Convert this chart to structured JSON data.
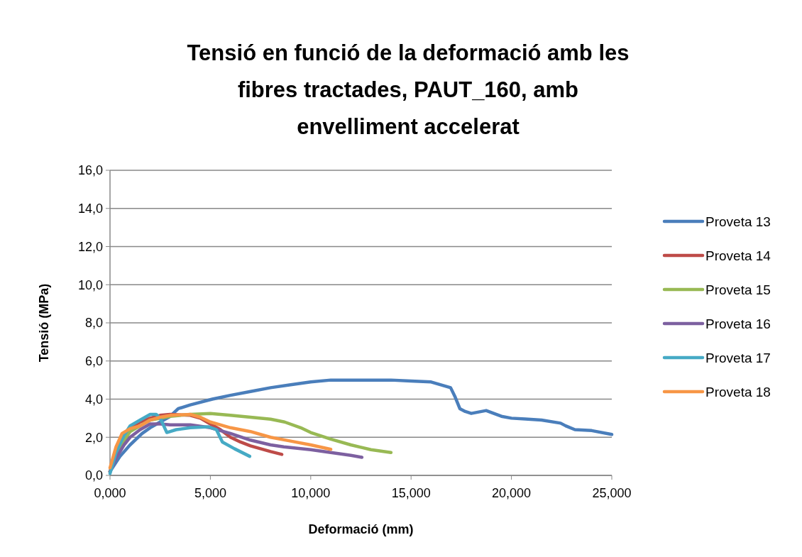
{
  "chart_data": {
    "type": "line",
    "title": "Tensió en funció de la deformació amb les fibres tractades, PAUT_160, amb envelliment accelerat",
    "xlabel": "Deformació (mm)",
    "ylabel": "Tensió (MPa)",
    "xlim": [
      0,
      25
    ],
    "xticks": [
      {
        "value": 0,
        "label": "0,000"
      },
      {
        "value": 5,
        "label": "5,000"
      },
      {
        "value": 10,
        "label": "10,000"
      },
      {
        "value": 15,
        "label": "15,000"
      },
      {
        "value": 20,
        "label": "20,000"
      },
      {
        "value": 25,
        "label": "25,000"
      }
    ],
    "ylim": [
      0,
      16
    ],
    "yticks": [
      {
        "value": 0,
        "label": "0,0"
      },
      {
        "value": 2,
        "label": "2,0"
      },
      {
        "value": 4,
        "label": "4,0"
      },
      {
        "value": 6,
        "label": "6,0"
      },
      {
        "value": 8,
        "label": "8,0"
      },
      {
        "value": 10,
        "label": "10,0"
      },
      {
        "value": 12,
        "label": "12,0"
      },
      {
        "value": 14,
        "label": "14,0"
      },
      {
        "value": 16,
        "label": "16,0"
      }
    ],
    "grid": "y",
    "legend": "right",
    "marker": "none",
    "line_style": "solid",
    "series": [
      {
        "name": "Proveta 13",
        "color": "#4a7ebb",
        "x": [
          0,
          0.5,
          1,
          1.6,
          2,
          3,
          3.4,
          4,
          5.1,
          6,
          7,
          8,
          9,
          10,
          11,
          12.2,
          13,
          14,
          15,
          16,
          16.97,
          17.2,
          17.43,
          17.7,
          18,
          18.74,
          19.5,
          20,
          20.69,
          21.5,
          22.45,
          22.7,
          23.16,
          24,
          25
        ],
        "values": [
          0.2,
          1.0,
          1.6,
          2.2,
          2.5,
          3.1,
          3.5,
          3.7,
          4.0,
          4.2,
          4.4,
          4.6,
          4.75,
          4.9,
          5.0,
          5.0,
          5.0,
          5.0,
          4.95,
          4.9,
          4.6,
          4.1,
          3.5,
          3.35,
          3.25,
          3.4,
          3.1,
          3.0,
          2.96,
          2.9,
          2.74,
          2.6,
          2.4,
          2.35,
          2.15
        ]
      },
      {
        "name": "Proveta 14",
        "color": "#be4b48",
        "x": [
          0,
          0.3,
          0.6,
          1,
          1.5,
          2,
          2.5,
          3,
          4,
          4.5,
          5,
          5.5,
          6,
          6.5,
          7,
          7.5,
          8,
          8.56
        ],
        "values": [
          0.2,
          1.2,
          2.0,
          2.5,
          2.8,
          3.0,
          3.15,
          3.2,
          3.15,
          3.0,
          2.7,
          2.4,
          2.0,
          1.75,
          1.55,
          1.4,
          1.25,
          1.1
        ]
      },
      {
        "name": "Proveta 15",
        "color": "#98b954",
        "x": [
          0,
          0.5,
          1,
          1.5,
          2,
          3,
          4,
          5,
          6,
          7,
          8,
          8.7,
          9.5,
          10,
          11,
          12,
          13,
          14
        ],
        "values": [
          0.2,
          1.5,
          2.3,
          2.6,
          2.9,
          3.1,
          3.2,
          3.25,
          3.15,
          3.05,
          2.95,
          2.8,
          2.5,
          2.25,
          1.9,
          1.6,
          1.35,
          1.2
        ]
      },
      {
        "name": "Proveta 16",
        "color": "#7d60a0",
        "x": [
          0,
          0.3,
          0.7,
          1,
          1.5,
          2,
          2.5,
          3,
          4,
          5,
          6,
          7,
          8,
          8.66,
          10,
          11,
          12,
          12.55
        ],
        "values": [
          0.2,
          0.9,
          1.6,
          2.0,
          2.4,
          2.7,
          2.7,
          2.65,
          2.65,
          2.5,
          2.2,
          1.85,
          1.6,
          1.5,
          1.35,
          1.2,
          1.05,
          0.95
        ]
      },
      {
        "name": "Proveta 17",
        "color": "#46aac5",
        "x": [
          0,
          0.3,
          0.7,
          1,
          1.5,
          2,
          2.3,
          2.5,
          2.83,
          3.3,
          4,
          4.9,
          5.3,
          5.6,
          6.2,
          6.96
        ],
        "values": [
          0.1,
          1.2,
          2.1,
          2.6,
          2.9,
          3.2,
          3.2,
          3.0,
          2.25,
          2.4,
          2.5,
          2.55,
          2.4,
          1.75,
          1.4,
          1.0
        ]
      },
      {
        "name": "Proveta 18",
        "color": "#f79646",
        "x": [
          0,
          0.3,
          0.6,
          1,
          1.5,
          2,
          2.5,
          3,
          4,
          4.5,
          5,
          6,
          7,
          7.5,
          8,
          9,
          10,
          11
        ],
        "values": [
          0.4,
          1.5,
          2.2,
          2.45,
          2.6,
          2.9,
          3.05,
          3.15,
          3.2,
          3.05,
          2.8,
          2.5,
          2.3,
          2.15,
          2.0,
          1.8,
          1.6,
          1.37
        ]
      }
    ]
  }
}
